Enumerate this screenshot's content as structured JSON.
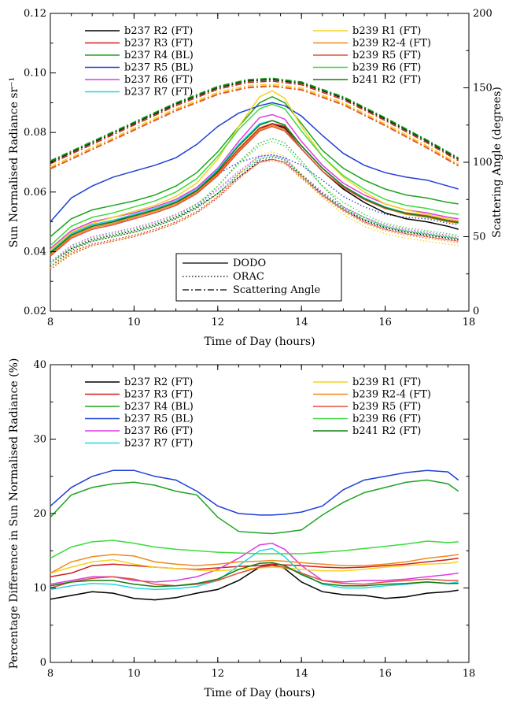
{
  "chart_data": [
    {
      "type": "line",
      "xlabel": "Time of Day (hours)",
      "ylabel": "Sun Normalised Radiance sr⁻¹",
      "ylabel2": "Scattering Angle (degrees)",
      "xlim": [
        8,
        18
      ],
      "ylim": [
        0.02,
        0.12
      ],
      "y2lim": [
        0,
        200
      ],
      "xticks": [
        "8",
        "10",
        "12",
        "14",
        "16",
        "18"
      ],
      "yticks": [
        "0.02",
        "0.04",
        "0.06",
        "0.08",
        "0.10",
        "0.12"
      ],
      "y2ticks": [
        "0",
        "50",
        "100",
        "150",
        "200"
      ],
      "grid": false,
      "legend_position": "top",
      "style_legend": [
        {
          "label": "DODO",
          "dash": "solid"
        },
        {
          "label": "ORAC",
          "dash": "dotted"
        },
        {
          "label": "Scattering Angle",
          "dash": "dash-dot"
        }
      ],
      "x": [
        8.0,
        8.5,
        9.0,
        9.5,
        10.0,
        10.5,
        11.0,
        11.5,
        12.0,
        12.5,
        13.0,
        13.3,
        13.6,
        14.0,
        14.5,
        15.0,
        15.5,
        16.0,
        16.5,
        17.0,
        17.5,
        17.75
      ],
      "series": [
        {
          "name": "b237 R2 (FT)",
          "color": "#000000",
          "dodo": [
            0.04,
            0.046,
            0.049,
            0.0505,
            0.052,
            0.054,
            0.0565,
            0.06,
            0.066,
            0.074,
            0.081,
            0.083,
            0.0815,
            0.0745,
            0.067,
            0.061,
            0.0565,
            0.053,
            0.051,
            0.05,
            0.0485,
            0.0475
          ],
          "orac": [
            0.036,
            0.041,
            0.044,
            0.0455,
            0.047,
            0.049,
            0.0515,
            0.055,
            0.0595,
            0.065,
            0.0705,
            0.071,
            0.07,
            0.065,
            0.059,
            0.054,
            0.0505,
            0.048,
            0.0465,
            0.0455,
            0.0445,
            0.044
          ],
          "pct": [
            8.5,
            9.0,
            9.5,
            9.3,
            8.6,
            8.4,
            8.7,
            9.3,
            9.8,
            11.0,
            12.8,
            13.2,
            12.6,
            10.8,
            9.5,
            9.1,
            9.0,
            8.6,
            8.8,
            9.3,
            9.5,
            9.7
          ]
        },
        {
          "name": "b237 R3 (FT)",
          "color": "#d11f1f",
          "dodo": [
            0.0395,
            0.0455,
            0.0485,
            0.05,
            0.052,
            0.054,
            0.0565,
            0.0605,
            0.0665,
            0.0745,
            0.0815,
            0.083,
            0.082,
            0.0755,
            0.068,
            0.062,
            0.0575,
            0.0545,
            0.053,
            0.052,
            0.0505,
            0.05
          ],
          "orac": [
            0.035,
            0.04,
            0.0425,
            0.044,
            0.0455,
            0.0475,
            0.05,
            0.0535,
            0.0585,
            0.065,
            0.07,
            0.071,
            0.07,
            0.0655,
            0.059,
            0.054,
            0.05,
            0.0475,
            0.046,
            0.045,
            0.044,
            0.0435
          ],
          "pct": [
            11.5,
            12.0,
            13.0,
            13.2,
            13.0,
            12.8,
            12.6,
            12.5,
            12.7,
            12.9,
            13.0,
            13.2,
            13.1,
            13.0,
            12.8,
            12.7,
            12.8,
            13.0,
            13.2,
            13.5,
            13.8,
            14.0
          ]
        },
        {
          "name": "b237 R4 (BL)",
          "color": "#1fa31f",
          "dodo": [
            0.045,
            0.051,
            0.054,
            0.0555,
            0.057,
            0.059,
            0.062,
            0.0665,
            0.0735,
            0.082,
            0.09,
            0.092,
            0.09,
            0.083,
            0.074,
            0.068,
            0.064,
            0.061,
            0.059,
            0.058,
            0.0565,
            0.056
          ],
          "orac": [
            0.0365,
            0.041,
            0.0435,
            0.045,
            0.0465,
            0.0485,
            0.051,
            0.055,
            0.062,
            0.07,
            0.0765,
            0.078,
            0.0765,
            0.0705,
            0.062,
            0.055,
            0.0515,
            0.0485,
            0.047,
            0.046,
            0.045,
            0.0445
          ],
          "pct": [
            19.5,
            22.5,
            23.5,
            24.0,
            24.2,
            23.8,
            23.0,
            22.5,
            19.5,
            17.6,
            17.4,
            17.3,
            17.5,
            17.8,
            19.8,
            21.5,
            22.8,
            23.5,
            24.2,
            24.5,
            24.0,
            23.0
          ]
        },
        {
          "name": "b237 R5 (BL)",
          "color": "#1f3fd6",
          "dodo": [
            0.05,
            0.058,
            0.062,
            0.065,
            0.067,
            0.069,
            0.0715,
            0.076,
            0.082,
            0.0865,
            0.089,
            0.09,
            0.089,
            0.0855,
            0.079,
            0.073,
            0.069,
            0.0665,
            0.065,
            0.064,
            0.062,
            0.061
          ],
          "orac": [
            0.0395,
            0.045,
            0.048,
            0.0495,
            0.051,
            0.053,
            0.0555,
            0.06,
            0.066,
            0.07,
            0.072,
            0.0725,
            0.0715,
            0.069,
            0.064,
            0.0585,
            0.055,
            0.0525,
            0.0515,
            0.051,
            0.0495,
            0.049
          ],
          "pct": [
            21.0,
            23.5,
            25.0,
            25.8,
            25.8,
            25.0,
            24.5,
            23.0,
            21.0,
            20.0,
            19.8,
            19.8,
            19.9,
            20.2,
            21.0,
            23.2,
            24.5,
            25.0,
            25.5,
            25.8,
            25.6,
            24.5
          ]
        },
        {
          "name": "b237 R6 (FT)",
          "color": "#e03ce0",
          "dodo": [
            0.041,
            0.047,
            0.05,
            0.0515,
            0.053,
            0.055,
            0.0575,
            0.0615,
            0.068,
            0.077,
            0.085,
            0.086,
            0.0845,
            0.077,
            0.069,
            0.063,
            0.059,
            0.056,
            0.054,
            0.053,
            0.0515,
            0.051
          ],
          "orac": [
            0.0365,
            0.042,
            0.045,
            0.0465,
            0.048,
            0.05,
            0.0525,
            0.056,
            0.061,
            0.067,
            0.072,
            0.0725,
            0.0715,
            0.066,
            0.06,
            0.055,
            0.0515,
            0.049,
            0.0475,
            0.0465,
            0.0455,
            0.045
          ],
          "pct": [
            10.5,
            11.0,
            11.5,
            11.5,
            11.0,
            10.8,
            11.0,
            11.5,
            12.5,
            14.0,
            15.8,
            16.0,
            15.2,
            13.0,
            11.0,
            10.8,
            11.0,
            11.0,
            11.2,
            11.5,
            11.8,
            12.0
          ]
        },
        {
          "name": "b237 R7 (FT)",
          "color": "#23d6e6",
          "dodo": [
            0.04,
            0.046,
            0.049,
            0.0505,
            0.0525,
            0.0545,
            0.057,
            0.061,
            0.0675,
            0.076,
            0.083,
            0.084,
            0.0825,
            0.0755,
            0.068,
            0.062,
            0.058,
            0.055,
            0.053,
            0.052,
            0.0505,
            0.05
          ],
          "orac": [
            0.036,
            0.0415,
            0.0445,
            0.046,
            0.0475,
            0.0495,
            0.052,
            0.0555,
            0.0605,
            0.0665,
            0.0715,
            0.072,
            0.071,
            0.0655,
            0.0595,
            0.0545,
            0.051,
            0.0485,
            0.047,
            0.046,
            0.045,
            0.0445
          ],
          "pct": [
            9.8,
            10.3,
            10.6,
            10.5,
            10.0,
            9.8,
            9.9,
            10.2,
            11.0,
            13.0,
            15.0,
            15.3,
            14.2,
            12.0,
            10.5,
            10.0,
            10.0,
            10.3,
            10.5,
            10.8,
            10.6,
            10.8
          ]
        },
        {
          "name": "b239 R1 (FT)",
          "color": "#f5d31f",
          "dodo": [
            0.0405,
            0.0465,
            0.0495,
            0.0515,
            0.0535,
            0.0555,
            0.0585,
            0.063,
            0.071,
            0.082,
            0.092,
            0.094,
            0.0915,
            0.082,
            0.072,
            0.065,
            0.06,
            0.056,
            0.054,
            0.0525,
            0.051,
            0.0505
          ],
          "orac": [
            0.0345,
            0.0395,
            0.042,
            0.0435,
            0.045,
            0.047,
            0.0495,
            0.053,
            0.0585,
            0.066,
            0.0725,
            0.0735,
            0.072,
            0.0655,
            0.058,
            0.0525,
            0.0485,
            0.046,
            0.0445,
            0.0435,
            0.0425,
            0.042
          ],
          "pct": [
            12.0,
            12.8,
            13.5,
            13.8,
            13.2,
            12.8,
            12.6,
            12.4,
            12.3,
            12.5,
            12.7,
            12.8,
            12.7,
            12.5,
            12.3,
            12.3,
            12.5,
            12.8,
            13.0,
            13.2,
            13.3,
            13.5
          ]
        },
        {
          "name": "b239 R2-4 (FT)",
          "color": "#f08a1c",
          "dodo": [
            0.039,
            0.045,
            0.048,
            0.0495,
            0.0515,
            0.0535,
            0.056,
            0.06,
            0.066,
            0.074,
            0.081,
            0.0825,
            0.081,
            0.0745,
            0.067,
            0.0615,
            0.0575,
            0.0545,
            0.0525,
            0.0515,
            0.05,
            0.0495
          ],
          "orac": [
            0.034,
            0.0395,
            0.042,
            0.0435,
            0.045,
            0.047,
            0.0495,
            0.053,
            0.058,
            0.0645,
            0.07,
            0.0705,
            0.0695,
            0.0645,
            0.0585,
            0.0535,
            0.0495,
            0.047,
            0.0455,
            0.0445,
            0.0435,
            0.043
          ],
          "pct": [
            12.0,
            13.5,
            14.2,
            14.5,
            14.3,
            13.5,
            13.2,
            13.0,
            13.2,
            13.5,
            13.6,
            13.7,
            13.6,
            13.4,
            13.2,
            13.0,
            13.0,
            13.2,
            13.5,
            14.0,
            14.3,
            14.5
          ]
        },
        {
          "name": "b239 R5 (FT)",
          "color": "#e0503a",
          "dodo": [
            0.0385,
            0.0445,
            0.0475,
            0.049,
            0.051,
            0.053,
            0.0555,
            0.0595,
            0.0655,
            0.0735,
            0.0805,
            0.082,
            0.0805,
            0.0745,
            0.067,
            0.0615,
            0.0575,
            0.0545,
            0.053,
            0.052,
            0.0505,
            0.05
          ],
          "orac": [
            0.034,
            0.039,
            0.042,
            0.0435,
            0.045,
            0.047,
            0.0495,
            0.053,
            0.058,
            0.0645,
            0.07,
            0.071,
            0.07,
            0.065,
            0.059,
            0.054,
            0.05,
            0.0475,
            0.046,
            0.045,
            0.044,
            0.0435
          ],
          "pct": [
            10.0,
            10.8,
            11.3,
            11.5,
            11.2,
            10.5,
            10.3,
            10.5,
            11.0,
            12.0,
            12.8,
            13.0,
            12.8,
            12.0,
            11.0,
            10.6,
            10.5,
            10.8,
            11.0,
            11.2,
            11.0,
            11.0
          ]
        },
        {
          "name": "b239 R6 (FT)",
          "color": "#3bdc3b",
          "dodo": [
            0.042,
            0.0485,
            0.0515,
            0.053,
            0.055,
            0.057,
            0.06,
            0.0645,
            0.072,
            0.081,
            0.088,
            0.0895,
            0.088,
            0.0805,
            0.072,
            0.0655,
            0.061,
            0.0575,
            0.0555,
            0.0545,
            0.053,
            0.0525
          ],
          "orac": [
            0.036,
            0.0415,
            0.0445,
            0.046,
            0.0475,
            0.0495,
            0.052,
            0.056,
            0.062,
            0.0695,
            0.0755,
            0.077,
            0.0755,
            0.0695,
            0.062,
            0.0565,
            0.0525,
            0.0495,
            0.048,
            0.047,
            0.046,
            0.0455
          ],
          "pct": [
            14.0,
            15.5,
            16.2,
            16.4,
            16.0,
            15.5,
            15.2,
            15.0,
            14.8,
            14.7,
            14.6,
            14.6,
            14.6,
            14.6,
            14.8,
            15.0,
            15.3,
            15.6,
            15.9,
            16.3,
            16.1,
            16.2
          ]
        },
        {
          "name": "b241 R2 (FT)",
          "color": "#117d11",
          "dodo": [
            0.0395,
            0.0455,
            0.0485,
            0.05,
            0.052,
            0.054,
            0.0565,
            0.0605,
            0.067,
            0.0755,
            0.0825,
            0.084,
            0.0825,
            0.0755,
            0.068,
            0.062,
            0.0578,
            0.0548,
            0.0528,
            0.0518,
            0.0503,
            0.0498
          ],
          "orac": [
            0.035,
            0.0405,
            0.0435,
            0.045,
            0.0465,
            0.0485,
            0.051,
            0.0545,
            0.0595,
            0.066,
            0.071,
            0.0718,
            0.0708,
            0.0658,
            0.0595,
            0.0545,
            0.0507,
            0.0482,
            0.0467,
            0.0457,
            0.0447,
            0.0442
          ],
          "pct": [
            10.3,
            10.8,
            11.0,
            11.0,
            10.5,
            10.2,
            10.3,
            10.6,
            11.2,
            12.5,
            13.3,
            13.4,
            13.0,
            11.8,
            10.6,
            10.3,
            10.3,
            10.5,
            10.6,
            10.8,
            10.6,
            10.6
          ]
        }
      ],
      "scattering_angle": {
        "x": [
          8.0,
          9.0,
          10.0,
          11.0,
          12.0,
          12.7,
          13.3,
          14.0,
          15.0,
          16.0,
          17.0,
          17.75
        ],
        "colors": [
          "#000000",
          "#d11f1f",
          "#1fa31f",
          "#f5d31f",
          "#f08a1c",
          "#e0503a",
          "#117d11"
        ],
        "offsets": [
          0,
          -1,
          1,
          -3,
          -4,
          -4.5,
          0.5
        ],
        "values": [
          100,
          113,
          126,
          139,
          150,
          154.5,
          155.5,
          153,
          143,
          129,
          114,
          102
        ]
      }
    },
    {
      "type": "line",
      "xlabel": "Time of Day (hours)",
      "ylabel": "Percentage Difference in Sun Normalised Radiance (%)",
      "xlim": [
        8,
        18
      ],
      "ylim": [
        0,
        40
      ],
      "xticks": [
        "8",
        "10",
        "12",
        "14",
        "16",
        "18"
      ],
      "yticks": [
        "0",
        "10",
        "20",
        "30",
        "40"
      ],
      "grid": false,
      "legend_position": "top"
    }
  ]
}
